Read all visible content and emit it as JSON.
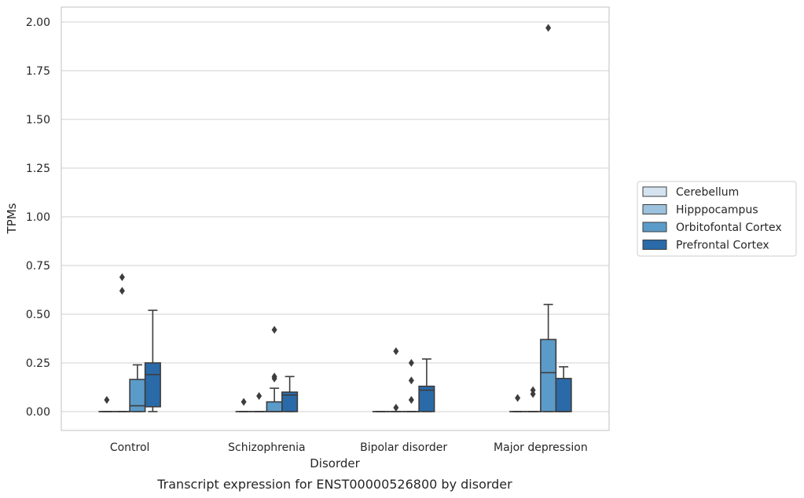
{
  "chart_data": {
    "type": "box",
    "caption": "Transcript expression for ENST00000526800 by disorder",
    "xlabel": "Disorder",
    "ylabel": "TPMs",
    "ylim": [
      -0.1,
      2.07
    ],
    "yticks": [
      "0.00",
      "0.25",
      "0.50",
      "0.75",
      "1.00",
      "1.25",
      "1.50",
      "1.75",
      "2.00"
    ],
    "grid": "horizontal",
    "legend_position": "right",
    "categories": [
      "Control",
      "Schizophrenia",
      "Bipolar disorder",
      "Major depression"
    ],
    "series": [
      {
        "name": "Cerebellum",
        "color": "#d5e3f0",
        "boxes": [
          {
            "q1": 0,
            "median": 0,
            "q3": 0,
            "whislo": 0,
            "whishi": 0,
            "fliers": [
              0.06
            ]
          },
          {
            "q1": 0,
            "median": 0,
            "q3": 0,
            "whislo": 0,
            "whishi": 0,
            "fliers": [
              0.05
            ]
          },
          {
            "q1": 0,
            "median": 0,
            "q3": 0,
            "whislo": 0,
            "whishi": 0,
            "fliers": []
          },
          {
            "q1": 0,
            "median": 0,
            "q3": 0,
            "whislo": 0,
            "whishi": 0,
            "fliers": [
              0.07
            ]
          }
        ]
      },
      {
        "name": "Hipppocampus",
        "color": "#9cc2de",
        "boxes": [
          {
            "q1": 0,
            "median": 0,
            "q3": 0,
            "whislo": 0,
            "whishi": 0,
            "fliers": [
              0.62,
              0.69
            ]
          },
          {
            "q1": 0,
            "median": 0,
            "q3": 0,
            "whislo": 0,
            "whishi": 0,
            "fliers": [
              0.08
            ]
          },
          {
            "q1": 0,
            "median": 0,
            "q3": 0,
            "whislo": 0,
            "whishi": 0,
            "fliers": [
              0.02,
              0.31
            ]
          },
          {
            "q1": 0,
            "median": 0,
            "q3": 0,
            "whislo": 0,
            "whishi": 0,
            "fliers": [
              0.09,
              0.11
            ]
          }
        ]
      },
      {
        "name": "Orbitofontal Cortex",
        "color": "#5b9bc9",
        "boxes": [
          {
            "q1": 0,
            "median": 0.03,
            "q3": 0.165,
            "whislo": 0,
            "whishi": 0.24,
            "fliers": []
          },
          {
            "q1": 0,
            "median": 0,
            "q3": 0.05,
            "whislo": 0,
            "whishi": 0.12,
            "fliers": [
              0.17,
              0.18,
              0.42
            ]
          },
          {
            "q1": 0,
            "median": 0,
            "q3": 0,
            "whislo": 0,
            "whishi": 0,
            "fliers": [
              0.06,
              0.16,
              0.25
            ]
          },
          {
            "q1": 0,
            "median": 0.2,
            "q3": 0.37,
            "whislo": 0,
            "whishi": 0.55,
            "fliers": [
              1.97
            ]
          }
        ]
      },
      {
        "name": "Prefrontal Cortex",
        "color": "#2a6aa8",
        "boxes": [
          {
            "q1": 0.025,
            "median": 0.19,
            "q3": 0.25,
            "whislo": 0,
            "whishi": 0.52,
            "fliers": []
          },
          {
            "q1": 0,
            "median": 0.085,
            "q3": 0.1,
            "whislo": 0,
            "whishi": 0.18,
            "fliers": []
          },
          {
            "q1": 0,
            "median": 0.11,
            "q3": 0.13,
            "whislo": 0,
            "whishi": 0.27,
            "fliers": []
          },
          {
            "q1": 0,
            "median": 0,
            "q3": 0.17,
            "whislo": 0,
            "whishi": 0.23,
            "fliers": []
          }
        ]
      }
    ]
  }
}
